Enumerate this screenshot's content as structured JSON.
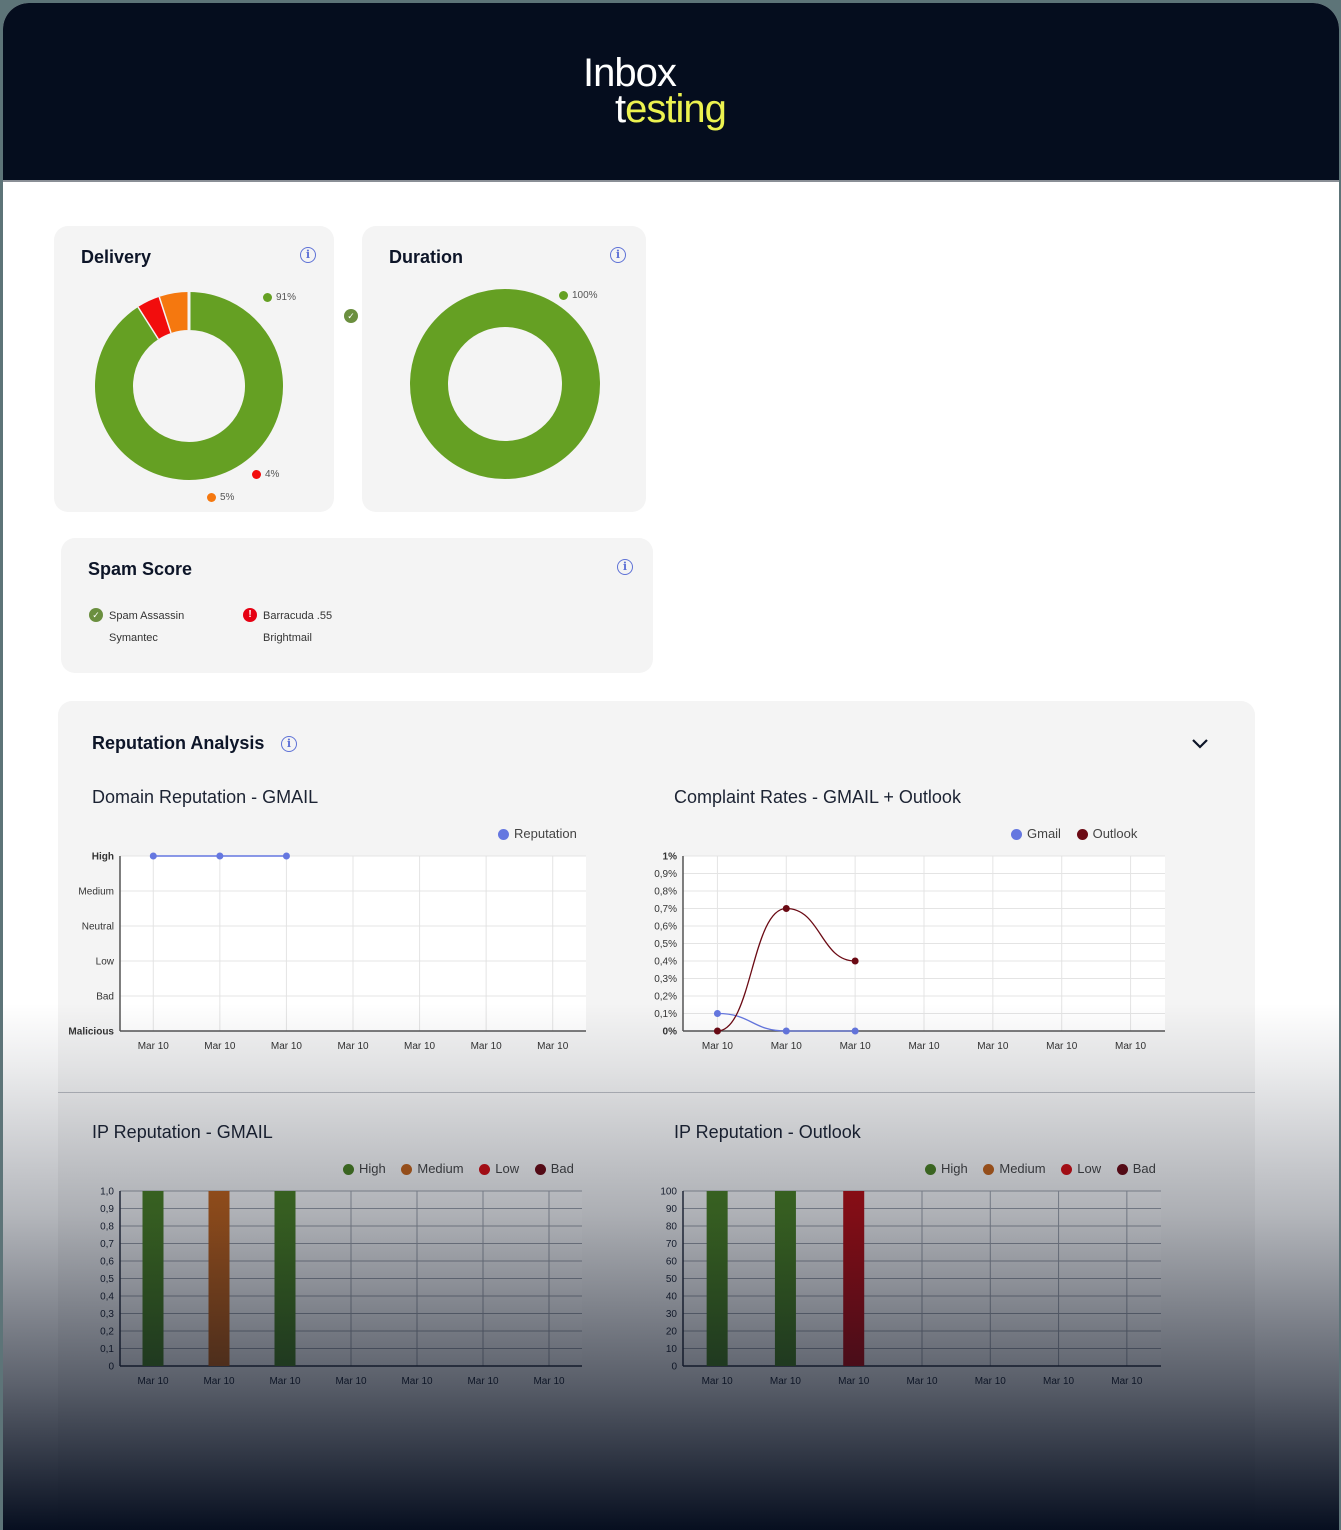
{
  "brand": {
    "line1": "Inbox",
    "line2_first": "t",
    "line2_rest": "esting"
  },
  "delivery": {
    "title": "Delivery",
    "segments": [
      {
        "label": "91%",
        "value": 91,
        "color": "#65a023"
      },
      {
        "label": "4%",
        "value": 4,
        "color": "#f20d0d"
      },
      {
        "label": "5%",
        "value": 5,
        "color": "#f5780f"
      }
    ]
  },
  "duration": {
    "title": "Duration",
    "segments": [
      {
        "label": "100%",
        "value": 100,
        "color": "#65a023"
      }
    ]
  },
  "spam_score": {
    "title": "Spam Score",
    "items": [
      {
        "name": "Spam Assassin",
        "status": "pass"
      },
      {
        "name": "Symantec",
        "status": "none"
      },
      {
        "name": "Barracuda .55",
        "status": "fail"
      },
      {
        "name": "Brightmail",
        "status": "none"
      }
    ]
  },
  "reputation": {
    "title": "Reputation Analysis",
    "domain_chart_title": "Domain Reputation - GMAIL",
    "complaint_chart_title": "Complaint Rates - GMAIL + Outlook",
    "ip_gmail_title": "IP Reputation - GMAIL",
    "ip_outlook_title": "IP Reputation - Outlook",
    "legend_reputation": "Reputation",
    "legend_gmail": "Gmail",
    "legend_outlook": "Outlook",
    "legend_high": "High",
    "legend_medium": "Medium",
    "legend_low": "Low",
    "legend_bad": "Bad"
  },
  "colors": {
    "reputation_line": "#6577e0",
    "gmail": "#6577e0",
    "outlook": "#6b0a14",
    "high": "#4a7f22",
    "medium": "#c0621a",
    "low": "#b50d12",
    "bad": "#6b0a14"
  },
  "chart_data": [
    {
      "type": "line",
      "title": "Domain Reputation - GMAIL",
      "categories": [
        "Mar 10",
        "Mar 10",
        "Mar 10",
        "Mar 10",
        "Mar 10",
        "Mar 10",
        "Mar 10"
      ],
      "yticks": [
        "Malicious",
        "Bad",
        "Low",
        "Neutral",
        "Medium",
        "High"
      ],
      "series": [
        {
          "name": "Reputation",
          "values": [
            "High",
            "High",
            "High",
            null,
            null,
            null,
            null
          ]
        }
      ],
      "legend_position": "top-right",
      "grid": true
    },
    {
      "type": "line",
      "title": "Complaint Rates - GMAIL + Outlook",
      "categories": [
        "Mar 10",
        "Mar 10",
        "Mar 10",
        "Mar 10",
        "Mar 10",
        "Mar 10",
        "Mar 10"
      ],
      "yticks": [
        "0%",
        "0,1%",
        "0,2%",
        "0,3%",
        "0,4%",
        "0,5%",
        "0,6%",
        "0,7%",
        "0,8%",
        "0,9%",
        "1%"
      ],
      "ylim": [
        0,
        1
      ],
      "series": [
        {
          "name": "Gmail",
          "values": [
            0.1,
            0,
            0,
            null,
            null,
            null,
            null
          ]
        },
        {
          "name": "Outlook",
          "values": [
            0,
            0.7,
            0.4,
            null,
            null,
            null,
            null
          ]
        }
      ],
      "legend_position": "top-right",
      "grid": true
    },
    {
      "type": "bar",
      "title": "IP Reputation - GMAIL",
      "categories": [
        "Mar 10",
        "Mar 10",
        "Mar 10",
        "Mar 10",
        "Mar 10",
        "Mar 10",
        "Mar 10"
      ],
      "yticks": [
        "0",
        "0,1",
        "0,2",
        "0,3",
        "0,4",
        "0,5",
        "0,6",
        "0,7",
        "0,8",
        "0,9",
        "1,0"
      ],
      "ylim": [
        0,
        1
      ],
      "bars": [
        {
          "value": 1,
          "level": "High"
        },
        {
          "value": 1,
          "level": "Medium"
        },
        {
          "value": 1,
          "level": "High"
        }
      ],
      "legend": [
        "High",
        "Medium",
        "Low",
        "Bad"
      ],
      "grid": true
    },
    {
      "type": "bar",
      "title": "IP Reputation - Outlook",
      "categories": [
        "Mar 10",
        "Mar 10",
        "Mar 10",
        "Mar 10",
        "Mar 10",
        "Mar 10",
        "Mar 10"
      ],
      "yticks": [
        "0",
        "10",
        "20",
        "30",
        "40",
        "50",
        "60",
        "70",
        "80",
        "90",
        "100"
      ],
      "ylim": [
        0,
        100
      ],
      "bars": [
        {
          "value": 100,
          "level": "High"
        },
        {
          "value": 100,
          "level": "High"
        },
        {
          "value": 100,
          "level": "Low"
        }
      ],
      "legend": [
        "High",
        "Medium",
        "Low",
        "Bad"
      ],
      "grid": true
    }
  ]
}
